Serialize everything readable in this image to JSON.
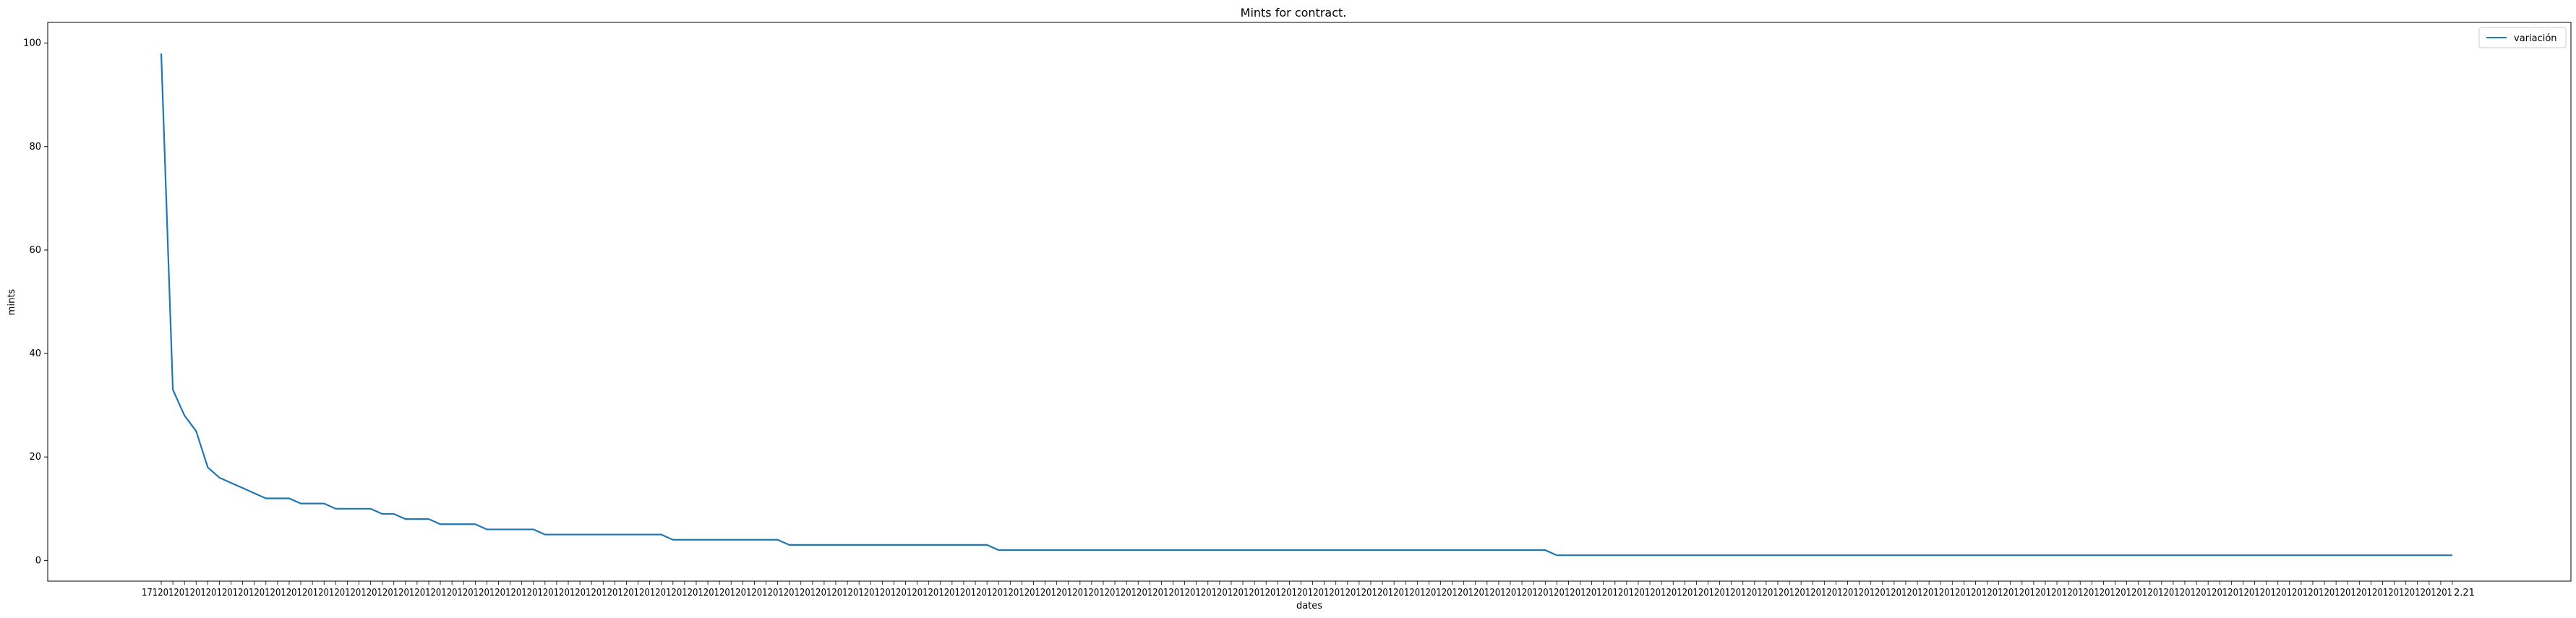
{
  "chart_data": {
    "type": "line",
    "title": "Mints for contract.",
    "xlabel": "dates",
    "ylabel": "mints",
    "ylim": [
      -4,
      104
    ],
    "yticks": [
      0,
      20,
      40,
      60,
      80,
      100
    ],
    "grid": false,
    "legend_placement": "top-right",
    "first_tick_label": "17",
    "last_tick_label": "2.21",
    "series": [
      {
        "name": "variación",
        "color": "#1f77b4",
        "values": [
          98,
          33,
          28,
          25,
          18,
          16,
          15,
          14,
          13,
          12,
          12,
          12,
          11,
          11,
          11,
          10,
          10,
          10,
          10,
          9,
          9,
          8,
          8,
          8,
          7,
          7,
          7,
          7,
          6,
          6,
          6,
          6,
          6,
          5,
          5,
          5,
          5,
          5,
          5,
          5,
          5,
          5,
          5,
          5,
          4,
          4,
          4,
          4,
          4,
          4,
          4,
          4,
          4,
          4,
          3,
          3,
          3,
          3,
          3,
          3,
          3,
          3,
          3,
          3,
          3,
          3,
          3,
          3,
          3,
          3,
          3,
          3,
          2,
          2,
          2,
          2,
          2,
          2,
          2,
          2,
          2,
          2,
          2,
          2,
          2,
          2,
          2,
          2,
          2,
          2,
          2,
          2,
          2,
          2,
          2,
          2,
          2,
          2,
          2,
          2,
          2,
          2,
          2,
          2,
          2,
          2,
          2,
          2,
          2,
          2,
          2,
          2,
          2,
          2,
          2,
          2,
          2,
          2,
          2,
          2,
          1,
          1,
          1,
          1,
          1,
          1,
          1,
          1,
          1,
          1,
          1,
          1,
          1,
          1,
          1,
          1,
          1,
          1,
          1,
          1,
          1,
          1,
          1,
          1,
          1,
          1,
          1,
          1,
          1,
          1,
          1,
          1,
          1,
          1,
          1,
          1,
          1,
          1,
          1,
          1,
          1,
          1,
          1,
          1,
          1,
          1,
          1,
          1,
          1,
          1,
          1,
          1,
          1,
          1,
          1,
          1,
          1,
          1,
          1,
          1,
          1,
          1,
          1,
          1,
          1,
          1,
          1,
          1,
          1,
          1,
          1,
          1,
          1,
          1,
          1,
          1,
          1,
          1
        ]
      }
    ]
  }
}
